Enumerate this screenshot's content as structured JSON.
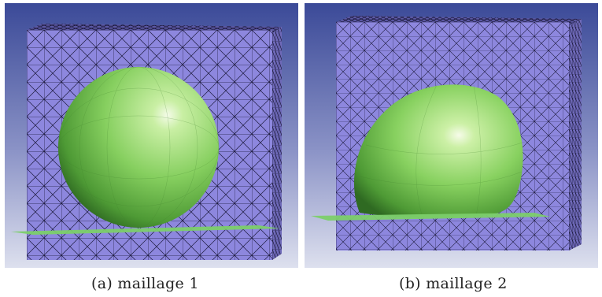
{
  "figures": [
    {
      "id": "a",
      "caption": "(a) maillage 1"
    },
    {
      "id": "b",
      "caption": "(b) maillage 2"
    }
  ],
  "colors": {
    "background_top": "#3d4c9a",
    "background_bottom": "#d8dcec",
    "mesh_block": "#8c86dc",
    "mesh_lines": "#1a1a3a",
    "sphere": "#8fd36a",
    "plate": "#7ccf6a"
  }
}
